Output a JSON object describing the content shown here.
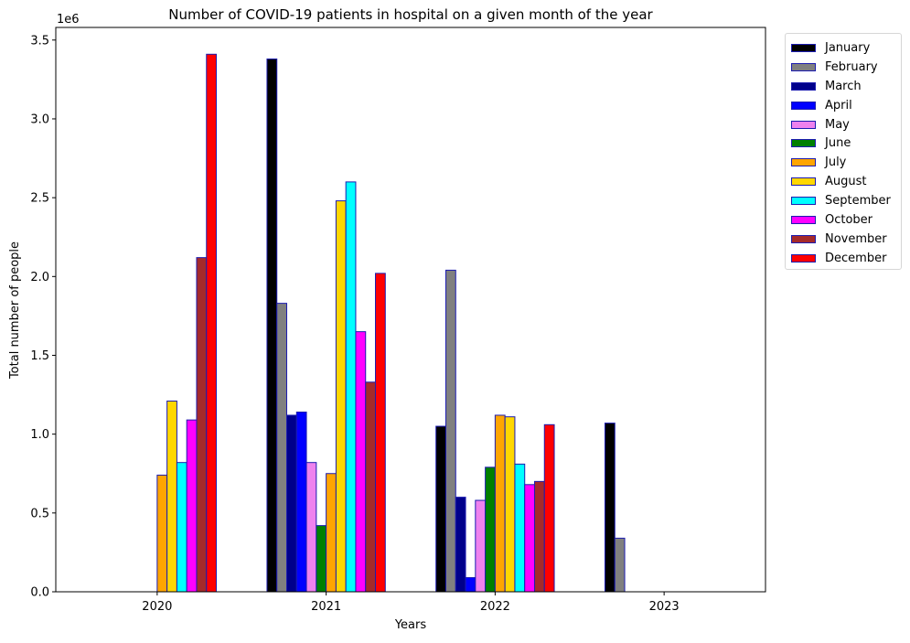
{
  "chart_data": {
    "type": "bar",
    "title": "Number of COVID-19 patients in hospital on a given month of the year",
    "xlabel": "Years",
    "ylabel": "Total number of people",
    "y_offset_label": "1e6",
    "ylim": [
      0,
      3.58
    ],
    "yticks": [
      "0.0",
      "0.5",
      "1.0",
      "1.5",
      "2.0",
      "2.5",
      "3.0",
      "3.5"
    ],
    "categories": [
      "2020",
      "2021",
      "2022",
      "2023"
    ],
    "edge_color": "#1c1cb0",
    "legend_position": "outside upper right",
    "series": [
      {
        "name": "January",
        "color": "#000000",
        "values": [
          0,
          3.38,
          1.05,
          1.07
        ]
      },
      {
        "name": "February",
        "color": "#808080",
        "values": [
          0,
          1.83,
          2.04,
          0.34
        ]
      },
      {
        "name": "March",
        "color": "#00008b",
        "values": [
          0,
          1.12,
          0.6,
          0
        ]
      },
      {
        "name": "April",
        "color": "#0000ff",
        "values": [
          0,
          1.14,
          0.09,
          0
        ]
      },
      {
        "name": "May",
        "color": "#ee82ee",
        "values": [
          0,
          0.82,
          0.58,
          0
        ]
      },
      {
        "name": "June",
        "color": "#008000",
        "values": [
          0,
          0.42,
          0.79,
          0
        ]
      },
      {
        "name": "July",
        "color": "#ffa500",
        "values": [
          0.74,
          0.75,
          1.12,
          0
        ]
      },
      {
        "name": "August",
        "color": "#ffd700",
        "values": [
          1.21,
          2.48,
          1.11,
          0
        ]
      },
      {
        "name": "September",
        "color": "#00ffff",
        "values": [
          0.82,
          2.6,
          0.81,
          0
        ]
      },
      {
        "name": "October",
        "color": "#ff00ff",
        "values": [
          1.09,
          1.65,
          0.68,
          0
        ]
      },
      {
        "name": "November",
        "color": "#a52a2a",
        "values": [
          2.12,
          1.33,
          0.7,
          0
        ]
      },
      {
        "name": "December",
        "color": "#ff0000",
        "values": [
          3.41,
          2.02,
          1.06,
          0
        ]
      }
    ]
  }
}
